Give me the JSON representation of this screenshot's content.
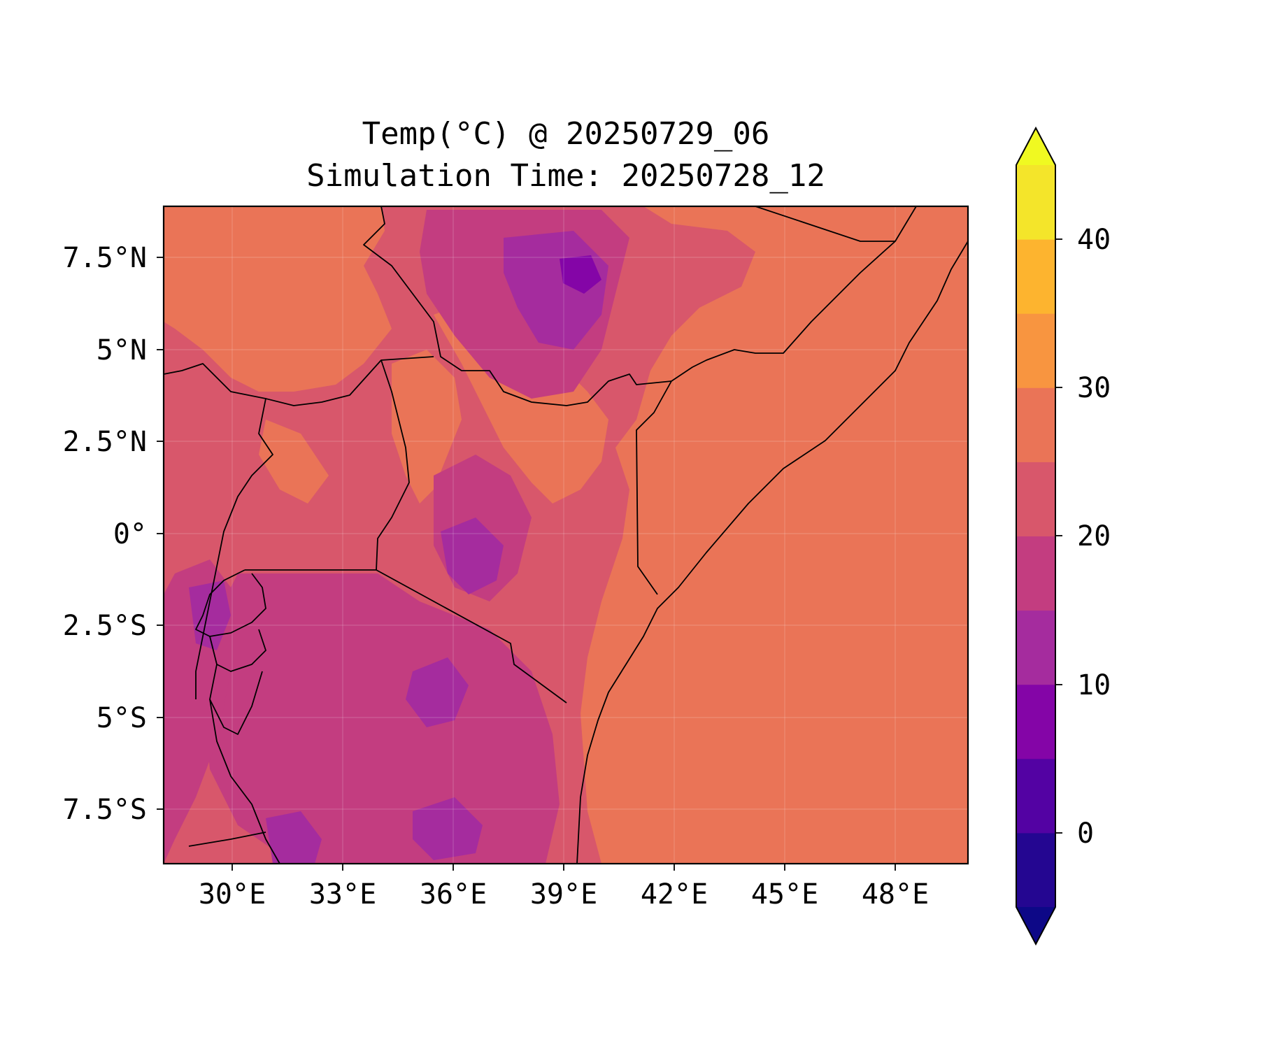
{
  "title": {
    "line1": "Temp(°C) @ 20250729_06",
    "line2": "Simulation Time: 20250728_12"
  },
  "map": {
    "region": "East Africa",
    "lon_range": [
      27.5,
      49.3
    ],
    "lat_range": [
      -9,
      8.9
    ],
    "x_ticks": [
      {
        "value": 30,
        "label": "30°E"
      },
      {
        "value": 33,
        "label": "33°E"
      },
      {
        "value": 36,
        "label": "36°E"
      },
      {
        "value": 39,
        "label": "39°E"
      },
      {
        "value": 42,
        "label": "42°E"
      },
      {
        "value": 45,
        "label": "45°E"
      },
      {
        "value": 48,
        "label": "48°E"
      }
    ],
    "y_ticks": [
      {
        "value": 7.5,
        "label": "7.5°N"
      },
      {
        "value": 5,
        "label": "5°N"
      },
      {
        "value": 2.5,
        "label": "2.5°N"
      },
      {
        "value": 0,
        "label": "0°"
      },
      {
        "value": -2.5,
        "label": "2.5°S"
      },
      {
        "value": -5,
        "label": "5°S"
      },
      {
        "value": -7.5,
        "label": "7.5°S"
      }
    ],
    "grid": true,
    "coastline": true,
    "country_borders": true
  },
  "colorbar": {
    "colormap": "plasma",
    "levels": [
      -5,
      0,
      5,
      10,
      15,
      20,
      25,
      30,
      35,
      40,
      45
    ],
    "extend": "both",
    "tick_labels": [
      {
        "value": 0,
        "label": "0"
      },
      {
        "value": 10,
        "label": "10"
      },
      {
        "value": 20,
        "label": "20"
      },
      {
        "value": 30,
        "label": "30"
      },
      {
        "value": 40,
        "label": "40"
      }
    ],
    "band_colors": [
      "#240691",
      "#5302a3",
      "#8405a7",
      "#a52c9e",
      "#c33d80",
      "#d8576b",
      "#ea7457",
      "#f89540",
      "#fdb42f",
      "#f4e52a"
    ],
    "under_color": "#0d0887",
    "over_color": "#f0f921"
  }
}
